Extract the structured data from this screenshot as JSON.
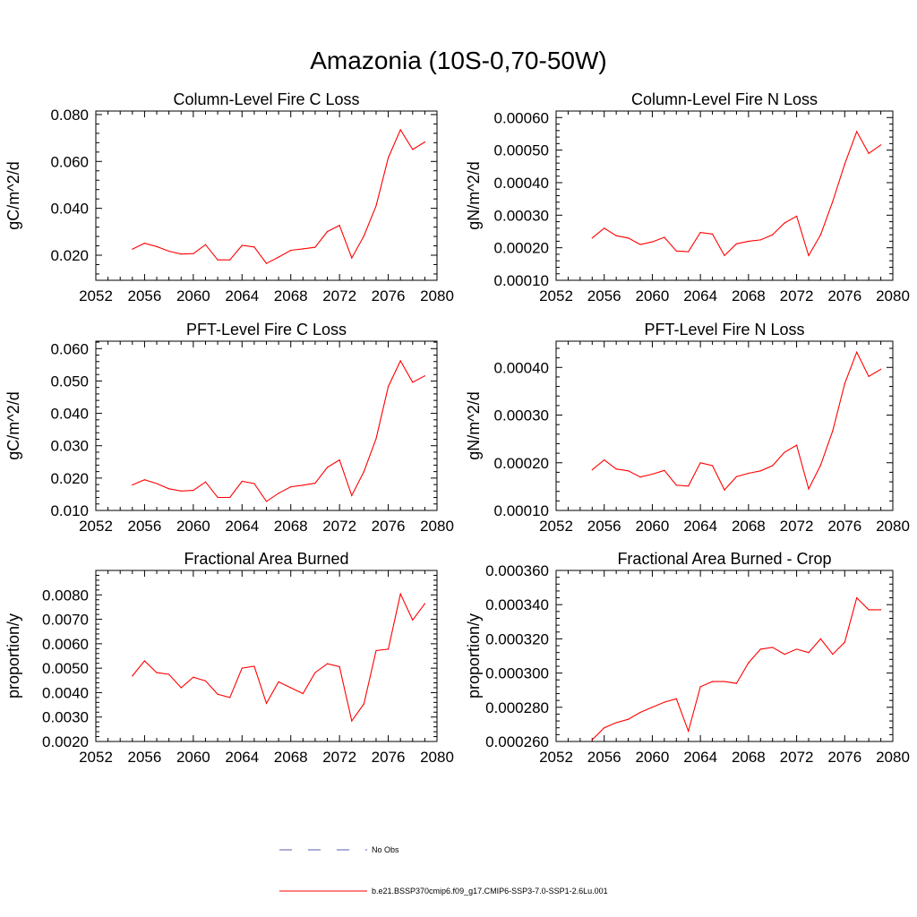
{
  "figure": {
    "title": "Amazonia (10S-0,70-50W)",
    "line_color": "#ff0000",
    "obs_line_color": "#5b5bb0"
  },
  "legend": {
    "obs_label": "No Obs",
    "model_label": "b.e21.BSSP370cmip6.f09_g17.CMIP6-SSP3-7.0-SSP1-2.6Lu.001"
  },
  "chart_data": [
    {
      "type": "line",
      "title": "Column-Level Fire C Loss",
      "ylabel": "gC/m^2/d",
      "xlim": [
        2052,
        2080
      ],
      "ylim": [
        0.0093,
        0.0815
      ],
      "xticks": [
        "2052",
        "2056",
        "2060",
        "2064",
        "2068",
        "2072",
        "2076",
        "2080"
      ],
      "yticks": [
        {
          "value": 0.02,
          "label": "0.020"
        },
        {
          "value": 0.04,
          "label": "0.040"
        },
        {
          "value": 0.06,
          "label": "0.060"
        },
        {
          "value": 0.08,
          "label": "0.080"
        }
      ],
      "series": [
        {
          "x": [
            2055,
            2056,
            2057,
            2058,
            2059,
            2060,
            2061,
            2062,
            2063,
            2064,
            2065,
            2066,
            2067,
            2068,
            2069,
            2070,
            2071,
            2072,
            2073,
            2074,
            2075,
            2076,
            2077,
            2078,
            2079
          ],
          "values": [
            0.0226,
            0.0251,
            0.0237,
            0.0217,
            0.0205,
            0.0207,
            0.0245,
            0.018,
            0.018,
            0.0242,
            0.0235,
            0.0165,
            0.0192,
            0.0221,
            0.0227,
            0.0234,
            0.0301,
            0.0327,
            0.0188,
            0.0282,
            0.0411,
            0.0616,
            0.0735,
            0.0651,
            0.0683
          ]
        }
      ]
    },
    {
      "type": "line",
      "title": "Column-Level Fire N Loss",
      "ylabel": "gN/m^2/d",
      "xlim": [
        2052,
        2080
      ],
      "ylim": [
        0.0001,
        0.00062
      ],
      "xticks": [
        "2052",
        "2056",
        "2060",
        "2064",
        "2068",
        "2072",
        "2076",
        "2080"
      ],
      "yticks": [
        {
          "value": 0.0001,
          "label": "0.00010"
        },
        {
          "value": 0.0002,
          "label": "0.00020"
        },
        {
          "value": 0.0003,
          "label": "0.00030"
        },
        {
          "value": 0.0004,
          "label": "0.00040"
        },
        {
          "value": 0.0005,
          "label": "0.00050"
        },
        {
          "value": 0.0006,
          "label": "0.00060"
        }
      ],
      "series": [
        {
          "x": [
            2055,
            2056,
            2057,
            2058,
            2059,
            2060,
            2061,
            2062,
            2063,
            2064,
            2065,
            2066,
            2067,
            2068,
            2069,
            2070,
            2071,
            2072,
            2073,
            2074,
            2075,
            2076,
            2077,
            2078,
            2079
          ],
          "values": [
            0.00023,
            0.00026,
            0.000237,
            0.00023,
            0.00021,
            0.000218,
            0.000232,
            0.00019,
            0.000188,
            0.000247,
            0.000242,
            0.000176,
            0.000212,
            0.00022,
            0.000224,
            0.00024,
            0.000276,
            0.000297,
            0.000176,
            0.00024,
            0.000342,
            0.000457,
            0.000557,
            0.00049,
            0.000516
          ]
        }
      ]
    },
    {
      "type": "line",
      "title": "PFT-Level Fire C Loss",
      "ylabel": "gC/m^2/d",
      "xlim": [
        2052,
        2080
      ],
      "ylim": [
        0.01,
        0.0623
      ],
      "xticks": [
        "2052",
        "2056",
        "2060",
        "2064",
        "2068",
        "2072",
        "2076",
        "2080"
      ],
      "yticks": [
        {
          "value": 0.01,
          "label": "0.010"
        },
        {
          "value": 0.02,
          "label": "0.020"
        },
        {
          "value": 0.03,
          "label": "0.030"
        },
        {
          "value": 0.04,
          "label": "0.040"
        },
        {
          "value": 0.05,
          "label": "0.050"
        },
        {
          "value": 0.06,
          "label": "0.060"
        }
      ],
      "series": [
        {
          "x": [
            2055,
            2056,
            2057,
            2058,
            2059,
            2060,
            2061,
            2062,
            2063,
            2064,
            2065,
            2066,
            2067,
            2068,
            2069,
            2070,
            2071,
            2072,
            2073,
            2074,
            2075,
            2076,
            2077,
            2078,
            2079
          ],
          "values": [
            0.0179,
            0.0195,
            0.0183,
            0.0167,
            0.016,
            0.0162,
            0.0188,
            0.014,
            0.014,
            0.019,
            0.0183,
            0.0128,
            0.0153,
            0.0173,
            0.0178,
            0.0184,
            0.0233,
            0.0256,
            0.0146,
            0.022,
            0.0322,
            0.0483,
            0.0562,
            0.0496,
            0.0516
          ]
        }
      ]
    },
    {
      "type": "line",
      "title": "PFT-Level Fire N Loss",
      "ylabel": "gN/m^2/d",
      "xlim": [
        2052,
        2080
      ],
      "ylim": [
        0.0001,
        0.000455
      ],
      "xticks": [
        "2052",
        "2056",
        "2060",
        "2064",
        "2068",
        "2072",
        "2076",
        "2080"
      ],
      "yticks": [
        {
          "value": 0.0001,
          "label": "0.00010"
        },
        {
          "value": 0.0002,
          "label": "0.00020"
        },
        {
          "value": 0.0003,
          "label": "0.00030"
        },
        {
          "value": 0.0004,
          "label": "0.00040"
        }
      ],
      "series": [
        {
          "x": [
            2055,
            2056,
            2057,
            2058,
            2059,
            2060,
            2061,
            2062,
            2063,
            2064,
            2065,
            2066,
            2067,
            2068,
            2069,
            2070,
            2071,
            2072,
            2073,
            2074,
            2075,
            2076,
            2077,
            2078,
            2079
          ],
          "values": [
            0.000185,
            0.000206,
            0.000187,
            0.000183,
            0.00017,
            0.000176,
            0.000184,
            0.000153,
            0.000151,
            0.0002,
            0.000194,
            0.000143,
            0.000171,
            0.000178,
            0.000183,
            0.000194,
            0.000222,
            0.000237,
            0.000145,
            0.000195,
            0.000267,
            0.000366,
            0.000432,
            0.000381,
            0.000396
          ]
        }
      ]
    },
    {
      "type": "line",
      "title": "Fractional Area Burned",
      "ylabel": "proportion/y",
      "xlim": [
        2052,
        2080
      ],
      "ylim": [
        0.002,
        0.009
      ],
      "xticks": [
        "2052",
        "2056",
        "2060",
        "2064",
        "2068",
        "2072",
        "2076",
        "2080"
      ],
      "yticks": [
        {
          "value": 0.002,
          "label": "0.0020"
        },
        {
          "value": 0.003,
          "label": "0.0030"
        },
        {
          "value": 0.004,
          "label": "0.0040"
        },
        {
          "value": 0.005,
          "label": "0.0050"
        },
        {
          "value": 0.006,
          "label": "0.0060"
        },
        {
          "value": 0.007,
          "label": "0.0070"
        },
        {
          "value": 0.008,
          "label": "0.0080"
        }
      ],
      "series": [
        {
          "x": [
            2055,
            2056,
            2057,
            2058,
            2059,
            2060,
            2061,
            2062,
            2063,
            2064,
            2065,
            2066,
            2067,
            2068,
            2069,
            2070,
            2071,
            2072,
            2073,
            2074,
            2075,
            2076,
            2077,
            2078,
            2079
          ],
          "values": [
            0.00468,
            0.0053,
            0.00482,
            0.00475,
            0.0042,
            0.00463,
            0.00448,
            0.00393,
            0.0038,
            0.005,
            0.00508,
            0.00356,
            0.00444,
            0.0042,
            0.00396,
            0.00482,
            0.00518,
            0.00506,
            0.00284,
            0.00354,
            0.00572,
            0.00578,
            0.00804,
            0.00697,
            0.00764
          ]
        }
      ]
    },
    {
      "type": "line",
      "title": "Fractional Area Burned - Crop",
      "ylabel": "proportion/y",
      "xlim": [
        2052,
        2080
      ],
      "ylim": [
        0.00026,
        0.00036
      ],
      "xticks": [
        "2052",
        "2056",
        "2060",
        "2064",
        "2068",
        "2072",
        "2076",
        "2080"
      ],
      "yticks": [
        {
          "value": 0.00026,
          "label": "0.000260"
        },
        {
          "value": 0.00028,
          "label": "0.000280"
        },
        {
          "value": 0.0003,
          "label": "0.000300"
        },
        {
          "value": 0.00032,
          "label": "0.000320"
        },
        {
          "value": 0.00034,
          "label": "0.000340"
        },
        {
          "value": 0.00036,
          "label": "0.000360"
        }
      ],
      "series": [
        {
          "x": [
            2055,
            2056,
            2057,
            2058,
            2059,
            2060,
            2061,
            2062,
            2063,
            2064,
            2065,
            2066,
            2067,
            2068,
            2069,
            2070,
            2071,
            2072,
            2073,
            2074,
            2075,
            2076,
            2077,
            2078,
            2079
          ],
          "values": [
            0.000261,
            0.000268,
            0.000271,
            0.000273,
            0.000277,
            0.00028,
            0.000283,
            0.000285,
            0.000266,
            0.000292,
            0.000295,
            0.000295,
            0.000294,
            0.000306,
            0.000314,
            0.000315,
            0.000311,
            0.000314,
            0.000312,
            0.00032,
            0.000311,
            0.000318,
            0.000344,
            0.000337,
            0.000337
          ]
        }
      ]
    }
  ]
}
